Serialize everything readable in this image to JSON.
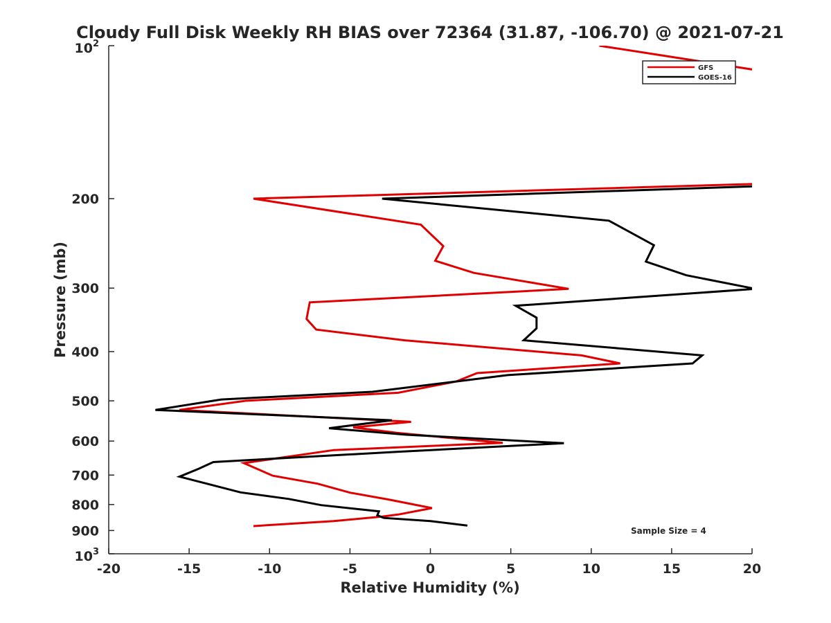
{
  "chart_data": {
    "type": "line",
    "title": "Cloudy Full Disk Weekly RH BIAS over 72364 (31.87, -106.70) @ 2021-07-21",
    "xlabel": "Relative Humidity (%)",
    "ylabel": "Pressure (mb)",
    "xlim": [
      -20,
      20
    ],
    "ylim": [
      100,
      1000
    ],
    "y_scale": "log",
    "y_reversed": true,
    "grid": false,
    "legend_position": "top-right",
    "x_ticks": [
      -20,
      -15,
      -10,
      -5,
      0,
      5,
      10,
      15,
      20
    ],
    "x_tick_labels": [
      "-20",
      "-15",
      "-10",
      "-5",
      "0",
      "5",
      "10",
      "15",
      "20"
    ],
    "y_ticks": [
      200,
      300,
      400,
      500,
      600,
      700,
      800,
      900
    ],
    "y_tick_labels": [
      "200",
      "300",
      "400",
      "500",
      "600",
      "700",
      "800",
      "900"
    ],
    "y_end_labels": {
      "top": {
        "base": "10",
        "exp": "2"
      },
      "bottom": {
        "base": "10",
        "exp": "3"
      }
    },
    "annotation": "Sample Size = 4",
    "series": [
      {
        "name": "GFS",
        "color": "#e00000",
        "points": [
          [
            10.5,
            100
          ],
          [
            20.5,
            112
          ],
          [
            20.5,
            187
          ],
          [
            -11,
            200
          ],
          [
            -0.6,
            225
          ],
          [
            0.8,
            248
          ],
          [
            0.3,
            265
          ],
          [
            2.7,
            280
          ],
          [
            8.6,
            301
          ],
          [
            -7.5,
            320
          ],
          [
            -7.7,
            345
          ],
          [
            -7.1,
            362
          ],
          [
            -1.6,
            380
          ],
          [
            9.4,
            407
          ],
          [
            11.8,
            422
          ],
          [
            2.9,
            441
          ],
          [
            1.6,
            458
          ],
          [
            -2,
            482
          ],
          [
            -11.5,
            500
          ],
          [
            -15.6,
            521
          ],
          [
            -1.2,
            550
          ],
          [
            -4.8,
            564
          ],
          [
            -2.1,
            578
          ],
          [
            4.5,
            605
          ],
          [
            -6,
            625
          ],
          [
            -11.6,
            663
          ],
          [
            -9.8,
            702
          ],
          [
            -7,
            728
          ],
          [
            -5,
            758
          ],
          [
            -2.6,
            782
          ],
          [
            0.1,
            813
          ],
          [
            -2,
            837
          ],
          [
            -3,
            845
          ],
          [
            -6,
            862
          ],
          [
            -11,
            882
          ]
        ]
      },
      {
        "name": "GOES-16",
        "color": "#000000",
        "points": [
          [
            20.5,
            189
          ],
          [
            -3,
            200
          ],
          [
            11.1,
            221
          ],
          [
            13.9,
            247
          ],
          [
            13.4,
            266
          ],
          [
            15.9,
            283
          ],
          [
            20.2,
            301
          ],
          [
            5.3,
            325
          ],
          [
            6.6,
            343
          ],
          [
            6.6,
            360
          ],
          [
            5.8,
            380
          ],
          [
            16.9,
            407
          ],
          [
            16.3,
            422
          ],
          [
            4.8,
            445
          ],
          [
            1.6,
            458
          ],
          [
            -3.6,
            480
          ],
          [
            -13,
            497
          ],
          [
            -17.1,
            521
          ],
          [
            -2.4,
            546
          ],
          [
            -6.3,
            566
          ],
          [
            -1.5,
            583
          ],
          [
            8.3,
            606
          ],
          [
            -2.1,
            630
          ],
          [
            -13.5,
            660
          ],
          [
            -14.4,
            680
          ],
          [
            -15.6,
            705
          ],
          [
            -11.8,
            757
          ],
          [
            -8.8,
            780
          ],
          [
            -6.8,
            802
          ],
          [
            -3.2,
            825
          ],
          [
            -3.3,
            840
          ],
          [
            -2.9,
            850
          ],
          [
            0,
            862
          ],
          [
            2.3,
            880
          ]
        ]
      }
    ]
  }
}
